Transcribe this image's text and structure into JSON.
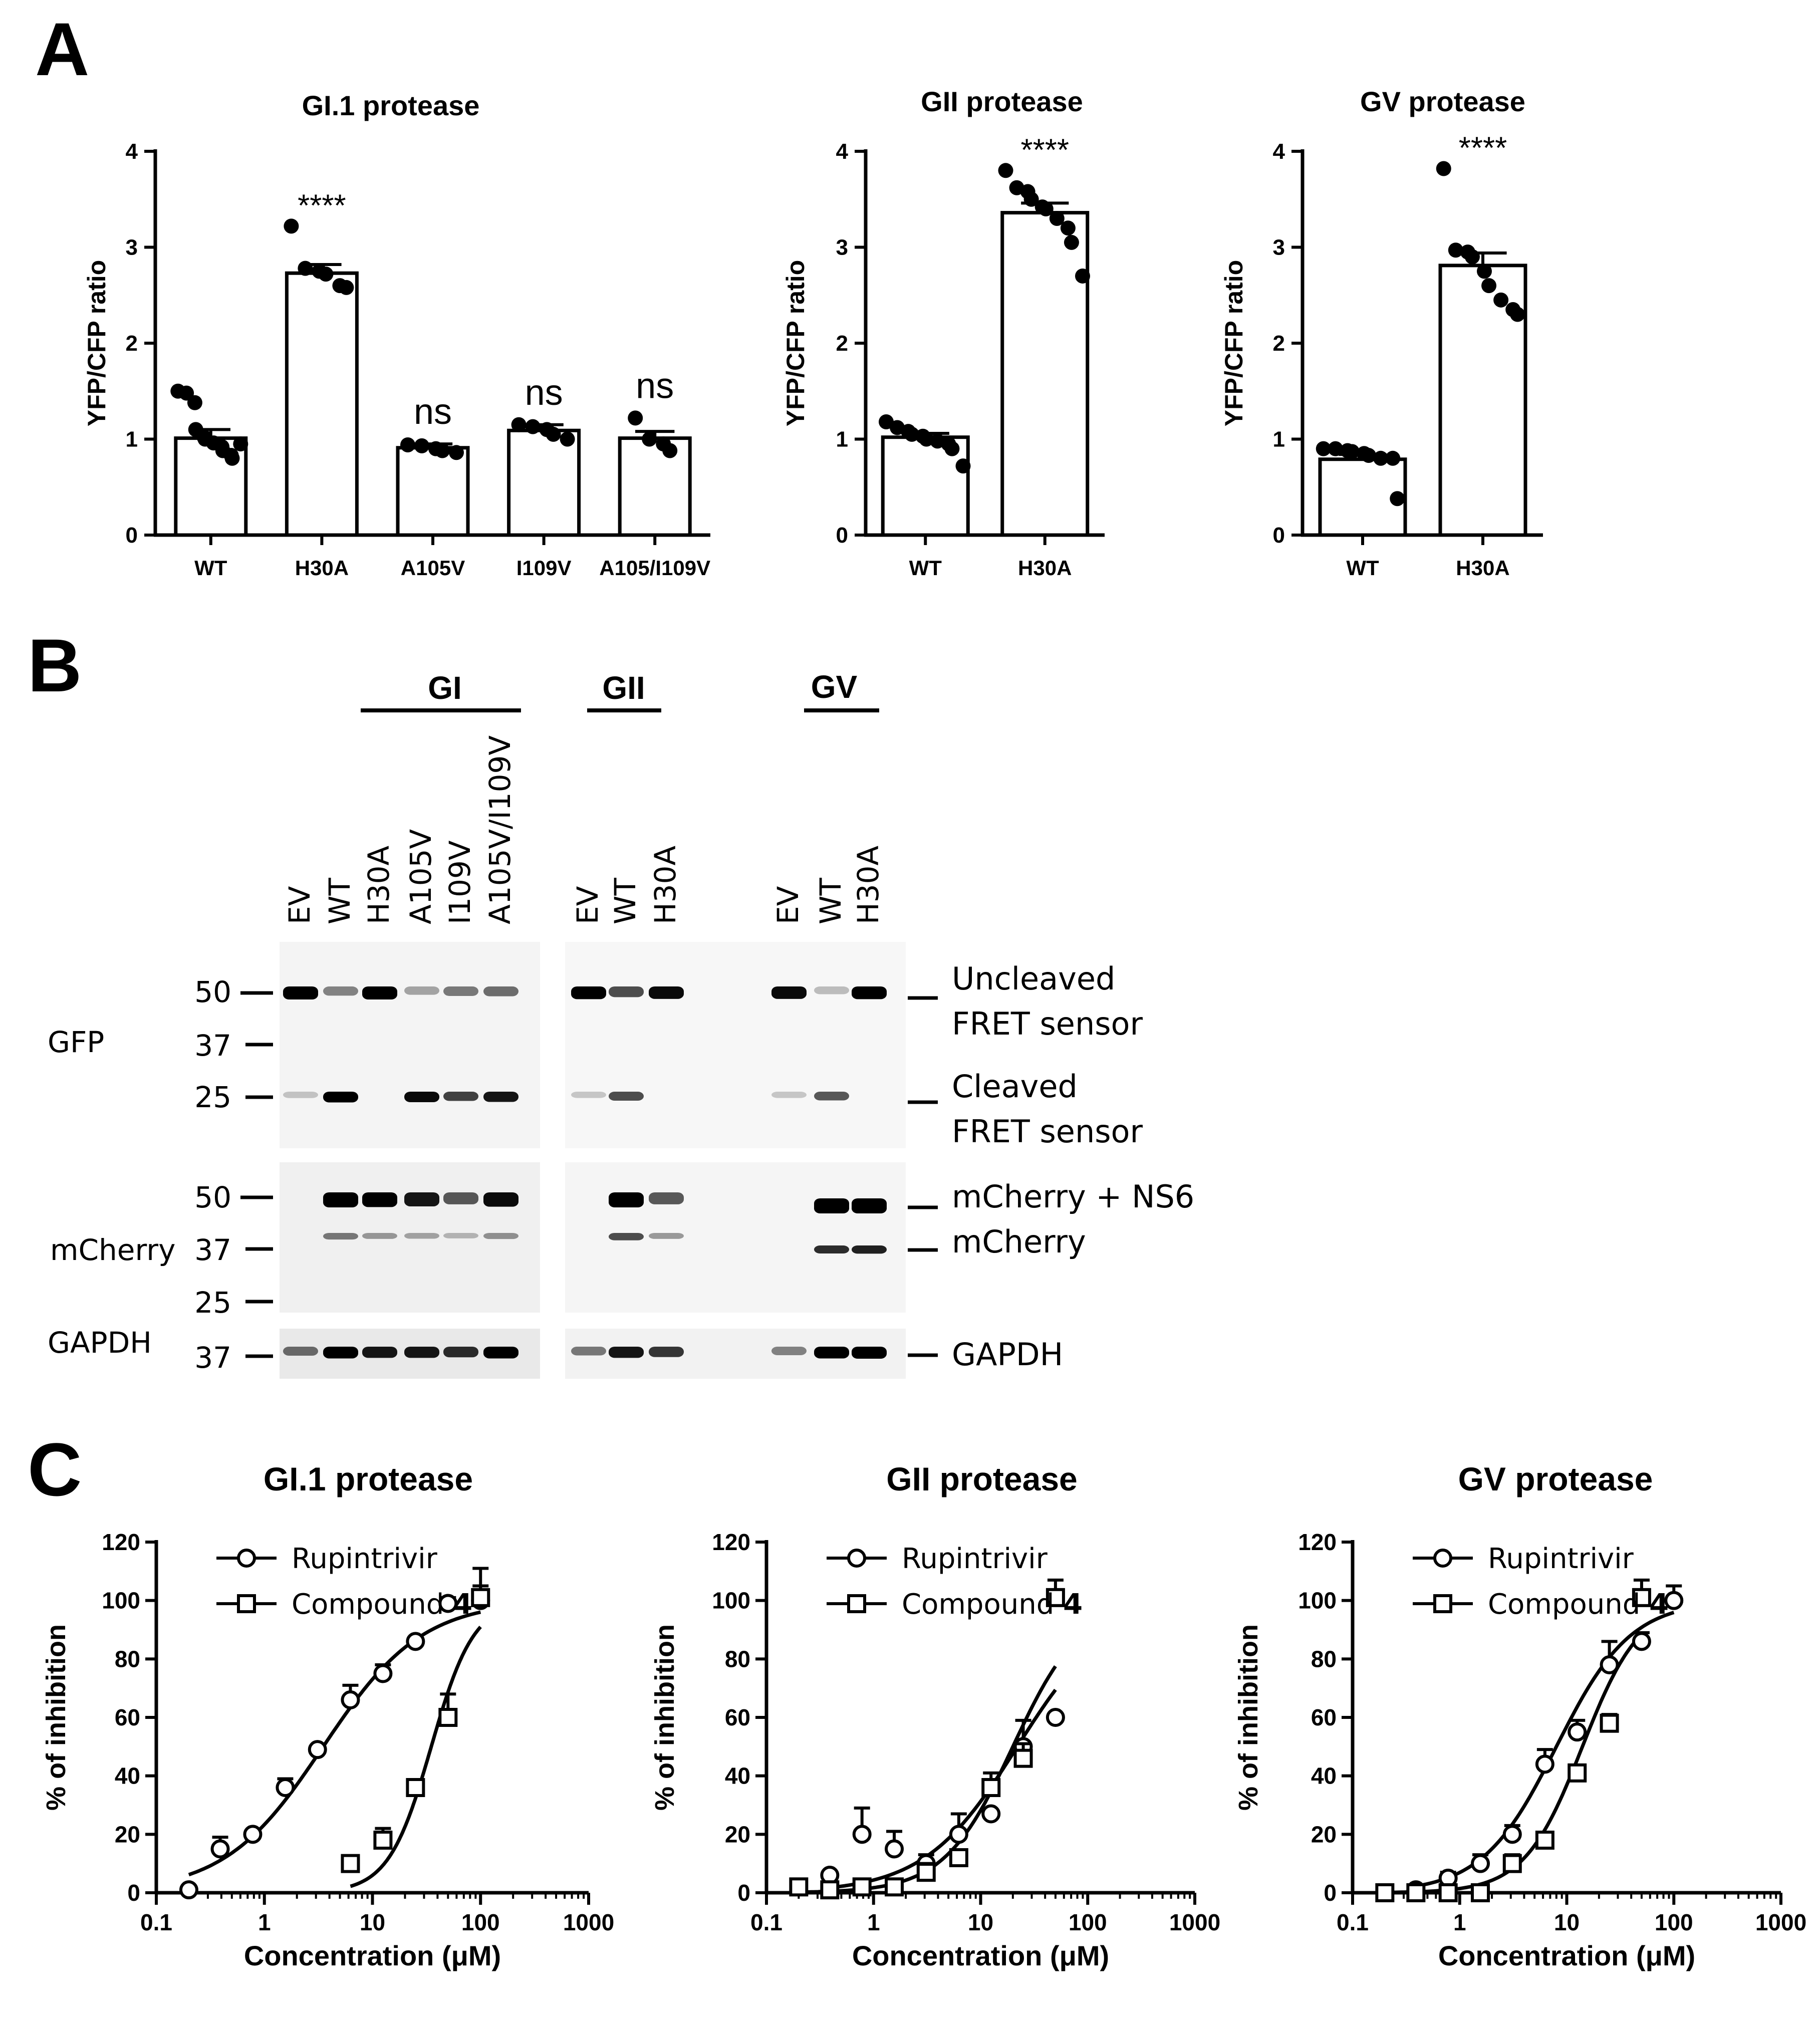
{
  "panel_labels": {
    "a": "A",
    "b": "B",
    "c": "C"
  },
  "chart_data": [
    {
      "type": "bar",
      "title": "GI.1 protease",
      "ylabel": "YFP/CFP ratio",
      "ylim": [
        0,
        4
      ],
      "yticks": [
        "0",
        "1",
        "2",
        "3",
        "4"
      ],
      "categories": [
        "WT",
        "H30A",
        "A105V",
        "I109V",
        "A105/I109V"
      ],
      "values": [
        1.01,
        2.73,
        0.91,
        1.09,
        1.01
      ],
      "errors": [
        0.09,
        0.09,
        0.04,
        0.06,
        0.07
      ],
      "significance": [
        "",
        "****",
        "ns",
        "ns",
        "ns"
      ],
      "points": [
        [
          1.5,
          1.48,
          1.38,
          1.1,
          1.02,
          1.0,
          0.96,
          0.92,
          0.88,
          0.83,
          0.8,
          0.95
        ],
        [
          3.22,
          2.78,
          2.75,
          2.72,
          2.6,
          2.58
        ],
        [
          0.94,
          0.93,
          0.9,
          0.88,
          0.86
        ],
        [
          1.15,
          1.13,
          1.1,
          1.05,
          1.0
        ],
        [
          1.22,
          1.0,
          0.95,
          0.88
        ]
      ]
    },
    {
      "type": "bar",
      "title": "GII protease",
      "ylabel": "YFP/CFP ratio",
      "ylim": [
        0,
        4
      ],
      "yticks": [
        "0",
        "1",
        "2",
        "3",
        "4"
      ],
      "categories": [
        "WT",
        "H30A"
      ],
      "values": [
        1.02,
        3.36
      ],
      "errors": [
        0.04,
        0.1
      ],
      "significance": [
        "",
        "****"
      ],
      "points": [
        [
          1.18,
          1.12,
          1.08,
          1.05,
          1.03,
          1.0,
          0.98,
          0.95,
          0.9,
          0.72
        ],
        [
          3.8,
          3.62,
          3.58,
          3.5,
          3.42,
          3.4,
          3.3,
          3.2,
          3.05,
          2.7
        ]
      ]
    },
    {
      "type": "bar",
      "title": "GV protease",
      "ylabel": "YFP/CFP ratio",
      "ylim": [
        0,
        4
      ],
      "yticks": [
        "0",
        "1",
        "2",
        "3",
        "4"
      ],
      "categories": [
        "WT",
        "H30A"
      ],
      "values": [
        0.79,
        2.81
      ],
      "errors": [
        0.05,
        0.13
      ],
      "significance": [
        "",
        "****"
      ],
      "points": [
        [
          0.9,
          0.9,
          0.88,
          0.87,
          0.85,
          0.83,
          0.8,
          0.8,
          0.38
        ],
        [
          3.82,
          2.97,
          2.95,
          2.9,
          2.75,
          2.6,
          2.45,
          2.35,
          2.3
        ]
      ]
    },
    {
      "type": "line",
      "title": "GI.1 protease",
      "xlabel": "Concentration (μM)",
      "ylabel": "% of inhibition",
      "xscale": "log",
      "xlim": [
        0.1,
        1000
      ],
      "ylim": [
        0,
        120
      ],
      "xticks": [
        "0.1",
        "1",
        "10",
        "100",
        "1000"
      ],
      "yticks": [
        "0",
        "20",
        "40",
        "60",
        "80",
        "100",
        "120"
      ],
      "legend": {
        "rupintrivir": "Rupintrivir",
        "compound_prefix": "Compound ",
        "compound_num": "4"
      },
      "series": [
        {
          "name": "Rupintrivir",
          "marker": "circle",
          "x": [
            0.2,
            0.39,
            0.78,
            1.56,
            3.1,
            6.25,
            12.5,
            25,
            50,
            100
          ],
          "y": [
            1,
            15,
            20,
            36,
            49,
            66,
            75,
            86,
            99,
            100
          ],
          "err": [
            0,
            4,
            0,
            3,
            0,
            5,
            3,
            0,
            2,
            5
          ],
          "fit": {
            "bottom": 0,
            "top": 100,
            "ec50": 3.5,
            "hill": 0.95
          }
        },
        {
          "name": "Compound 4",
          "marker": "square",
          "x": [
            6.25,
            12.5,
            25,
            50,
            100
          ],
          "y": [
            10,
            18,
            36,
            60,
            101
          ],
          "err": [
            2,
            4,
            2,
            8,
            10
          ],
          "fit": {
            "bottom": 0,
            "top": 100,
            "ec50": 35,
            "hill": 2.2
          }
        }
      ]
    },
    {
      "type": "line",
      "title": "GII protease",
      "xlabel": "Concentration (μM)",
      "ylabel": "% of inhibition",
      "xscale": "log",
      "xlim": [
        0.1,
        1000
      ],
      "ylim": [
        0,
        120
      ],
      "xticks": [
        "0.1",
        "1",
        "10",
        "100",
        "1000"
      ],
      "yticks": [
        "0",
        "20",
        "40",
        "60",
        "80",
        "100",
        "120"
      ],
      "legend": {
        "rupintrivir": "Rupintrivir",
        "compound_prefix": "Compound ",
        "compound_num": "4"
      },
      "series": [
        {
          "name": "Rupintrivir",
          "marker": "circle",
          "x": [
            0.39,
            0.78,
            1.56,
            3.1,
            6.25,
            12.5,
            25,
            50
          ],
          "y": [
            6,
            20,
            15,
            10,
            20,
            27,
            50,
            60
          ],
          "err": [
            0,
            9,
            6,
            3,
            7,
            0,
            9,
            0
          ],
          "fit": {
            "bottom": 0,
            "top": 100,
            "ec50": 22,
            "hill": 1.0
          }
        },
        {
          "name": "Compound 4",
          "marker": "square",
          "x": [
            0.2,
            0.39,
            0.78,
            1.56,
            3.1,
            6.25,
            12.5,
            25,
            50
          ],
          "y": [
            2,
            1,
            2,
            2,
            7,
            12,
            36,
            46,
            101
          ],
          "err": [
            0,
            0,
            0,
            0,
            3,
            0,
            5,
            5,
            6
          ],
          "fit": {
            "bottom": 0,
            "top": 100,
            "ec50": 20,
            "hill": 1.35
          }
        }
      ]
    },
    {
      "type": "line",
      "title": "GV protease",
      "xlabel": "Concentration (μM)",
      "ylabel": "% of inhibition",
      "xscale": "log",
      "xlim": [
        0.1,
        1000
      ],
      "ylim": [
        0,
        120
      ],
      "xticks": [
        "0.1",
        "1",
        "10",
        "100",
        "1000"
      ],
      "yticks": [
        "0",
        "20",
        "40",
        "60",
        "80",
        "100",
        "120"
      ],
      "legend": {
        "rupintrivir": "Rupintrivir",
        "compound_prefix": "Compound ",
        "compound_num": "4"
      },
      "series": [
        {
          "name": "Rupintrivir",
          "marker": "circle",
          "x": [
            0.39,
            0.78,
            1.56,
            3.1,
            6.25,
            12.5,
            25,
            50,
            100
          ],
          "y": [
            1,
            5,
            10,
            20,
            44,
            55,
            78,
            86,
            100
          ],
          "err": [
            0,
            2,
            3,
            3,
            5,
            4,
            8,
            3,
            5
          ],
          "fit": {
            "bottom": 0,
            "top": 100,
            "ec50": 8,
            "hill": 1.25
          }
        },
        {
          "name": "Compound 4",
          "marker": "square",
          "x": [
            0.2,
            0.39,
            0.78,
            1.56,
            3.1,
            6.25,
            12.5,
            25,
            50
          ],
          "y": [
            0,
            0,
            0,
            0,
            10,
            18,
            41,
            58,
            101
          ],
          "err": [
            0,
            0,
            0,
            0,
            3,
            0,
            2,
            3,
            6
          ],
          "fit": {
            "bottom": 0,
            "top": 100,
            "ec50": 14,
            "hill": 1.6
          }
        }
      ]
    }
  ],
  "blot": {
    "groups": {
      "gi": "GI",
      "gii": "GII",
      "gv": "GV"
    },
    "lanes_left": [
      "EV",
      "WT",
      "H30A",
      "A105V",
      "I109V",
      "A105V/I109V"
    ],
    "lanes_mid": [
      "EV",
      "WT",
      "H30A"
    ],
    "lanes_right": [
      "EV",
      "WT",
      "H30A"
    ],
    "row_labels": {
      "gfp": "GFP",
      "mcherry": "mCherry",
      "gapdh": "GAPDH"
    },
    "markers": {
      "gfp": [
        "50",
        "37",
        "25"
      ],
      "mcherry": [
        "50",
        "37",
        "25"
      ],
      "gapdh": [
        "37"
      ]
    },
    "annotations": {
      "uncleaved_1": "Uncleaved",
      "uncleaved_2": "FRET sensor",
      "cleaved_1": "Cleaved",
      "cleaved_2": "FRET sensor",
      "mcherry_ns6": "mCherry + NS6",
      "mcherry": "mCherry",
      "gapdh": "GAPDH"
    }
  }
}
